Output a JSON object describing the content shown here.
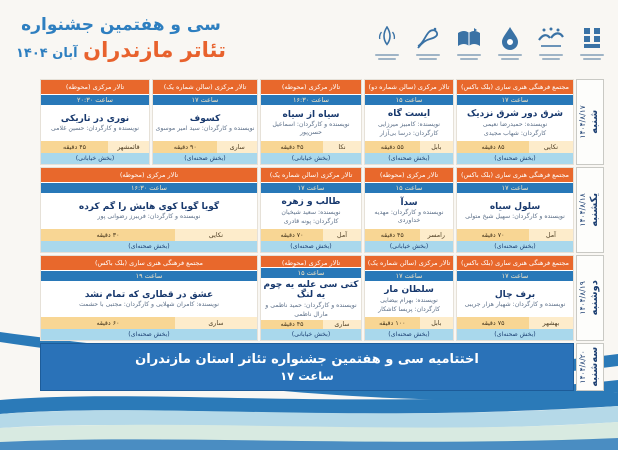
{
  "header": {
    "title_line1": "سی و هفتمین جشنواره",
    "title_name": "تئاتر مازندران",
    "title_year": "آبان ۱۴۰۴",
    "logos": [
      "iran-emblem-logo",
      "calligraphy-logo",
      "book-logo",
      "water-drop-logo",
      "theater-logo",
      "pillars-logo"
    ]
  },
  "schedule": {
    "rows": [
      {
        "day": "شنبه",
        "date": "۱۴۰۴/۸/۱۷",
        "cells": [
          {
            "span": 1,
            "venue": "مجتمع فرهنگی هنری ساری (بلک باکس)",
            "time": "ساعت ۱۷",
            "title": "شرق دور شرق نزدیک",
            "credits": [
              "نویسنده: حمیدرضا نعیمی",
              "کارگردان: شهاب مجیدی"
            ],
            "city": "نکایی",
            "duration": "۸۵ دقیقه",
            "section": "(بخش صحنه‌ای)"
          },
          {
            "span": 1,
            "venue": "تالار مرکزی (سالن شماره دو)",
            "time": "ساعت ۱۵",
            "title": "ایست گاه",
            "credits": [
              "نویسنده: کامبیز میرزایی",
              "کارگردان: درسا بی‌آزار"
            ],
            "city": "بابل",
            "duration": "۵۵ دقیقه",
            "section": "(بخش صحنه‌ای)"
          },
          {
            "span": 1,
            "venue": "تالار مرکزی (محوطه)",
            "time": "ساعت ۱۶:۳۰",
            "title": "سیاه از سیاه",
            "credits": [
              "نویسنده و کارگردان: اسماعیل حسن‌پور"
            ],
            "city": "نکا",
            "duration": "۴۵ دقیقه",
            "section": "(بخش خیابانی)"
          },
          {
            "span": 1,
            "venue": "تالار مرکزی (سالن شماره یک)",
            "time": "ساعت ۱۷",
            "title": "کسوف",
            "credits": [
              "نویسنده و کارگردان: سید امیر موسوی"
            ],
            "city": "ساری",
            "duration": "۹۰ دقیقه",
            "section": "(بخش صحنه‌ای)"
          },
          {
            "span": 1,
            "venue": "تالار مرکزی (محوطه)",
            "time": "ساعت ۲۰:۳۰",
            "title": "نوری در تاریکی",
            "credits": [
              "نویسنده و کارگردان: حسین غلامی"
            ],
            "city": "قائمشهر",
            "duration": "۴۵ دقیقه",
            "section": "(بخش خیابانی)"
          }
        ]
      },
      {
        "day": "یکشنبه",
        "date": "۱۴۰۴/۸/۱۸",
        "cells": [
          {
            "span": 1,
            "venue": "مجتمع فرهنگی هنری ساری (بلک باکس)",
            "time": "ساعت ۱۷",
            "title": "سلول سیاه",
            "credits": [
              "نویسنده و کارگردان: سهیل شیخ متولی"
            ],
            "city": "آمل",
            "duration": "۷۰ دقیقه",
            "section": "(بخش صحنه‌ای)"
          },
          {
            "span": 1,
            "venue": "تالار مرکزی (محوطه)",
            "time": "ساعت ۱۵",
            "title": "سدآ",
            "credits": [
              "نویسنده و کارگردان: مهدیه خداوردی"
            ],
            "city": "رامسر",
            "duration": "۴۵ دقیقه",
            "section": "(بخش خیابانی)"
          },
          {
            "span": 1,
            "venue": "تالار مرکزی (سالن شماره یک)",
            "time": "ساعت ۱۷",
            "title": "طالب و زهره",
            "credits": [
              "نویسنده: سعید شیخیان",
              "کارگردان: پونه قادری"
            ],
            "city": "آمل",
            "duration": "۷۰ دقیقه",
            "section": "(بخش صحنه‌ای)"
          },
          {
            "span": 2,
            "venue": "تالار مرکزی (محوطه)",
            "time": "ساعت ۱۶:۳۰",
            "title": "گویا گویا کوی هایش را گم کرده",
            "credits": [
              "نویسنده و کارگردان: فریبرز رضوانی پور"
            ],
            "city": "نکایی",
            "duration": "۳۰ دقیقه",
            "section": "(بخش صحنه‌ای)"
          }
        ]
      },
      {
        "day": "دوشنبه",
        "date": "۱۴۰۴/۸/۱۹",
        "cells": [
          {
            "span": 1,
            "venue": "مجتمع فرهنگی هنری ساری (بلک باکس)",
            "time": "ساعت ۱۷",
            "title": "برف چال",
            "credits": [
              "نویسنده و کارگردان: شهیار هزار جریبی"
            ],
            "city": "بهشهر",
            "duration": "۷۵ دقیقه",
            "section": "(بخش صحنه‌ای)"
          },
          {
            "span": 1,
            "venue": "تالار مرکزی (سالن شماره یک)",
            "time": "ساعت ۱۷",
            "title": "سلطان مار",
            "credits": [
              "نویسنده: بهرام بیضایی",
              "کارگردان: پریسا کاشکار"
            ],
            "city": "بابل",
            "duration": "۱۰۰ دقیقه",
            "section": "(بخش صحنه‌ای)"
          },
          {
            "span": 1,
            "venue": "تالار مرکزی (محوطه)",
            "time": "ساعت ۱۵",
            "title": "کتی سی علیه یه چوم یه لنگ",
            "credits": [
              "نویسنده و کارگردان: حمید ناظمی و",
              "مارال ناظمی"
            ],
            "city": "ساری",
            "duration": "۴۵ دقیقه",
            "section": "(بخش خیابانی)"
          },
          {
            "span": 2,
            "venue": "مجتمع فرهنگی هنری ساری (بلک باکس)",
            "time": "ساعت ۱۹",
            "title": "عشق در قطاری که تمام نشد",
            "credits": [
              "نویسنده: کامران شهلایی و کارگردان: مجتبی با حشمت"
            ],
            "city": "ساری",
            "duration": "۶۰ دقیقه",
            "section": "(بخش صحنه‌ای)"
          }
        ]
      }
    ]
  },
  "closing": {
    "day": "سه‌شنبه",
    "date": "۱۴۰۴/۸/۲۰",
    "line1": "اختتامیه سی و هفتمین جشنواره تئاتر استان مازندران",
    "line2": "ساعت ۱۷"
  },
  "colors": {
    "venue_orange": "#e8682c",
    "time_blue": "#2878b8",
    "title_navy": "#17386d",
    "city_cream": "#fdeccb",
    "duration_yellow": "#f8d694",
    "section_lightblue": "#a9d8ec",
    "banner_blue": "#2a72b8",
    "accent_orange": "#e8622d",
    "accent_blue": "#2e7fc0",
    "wave_dark": "#2b7ab8",
    "wave_light": "#b5d9e8",
    "wave_mint": "#d8eae1"
  }
}
